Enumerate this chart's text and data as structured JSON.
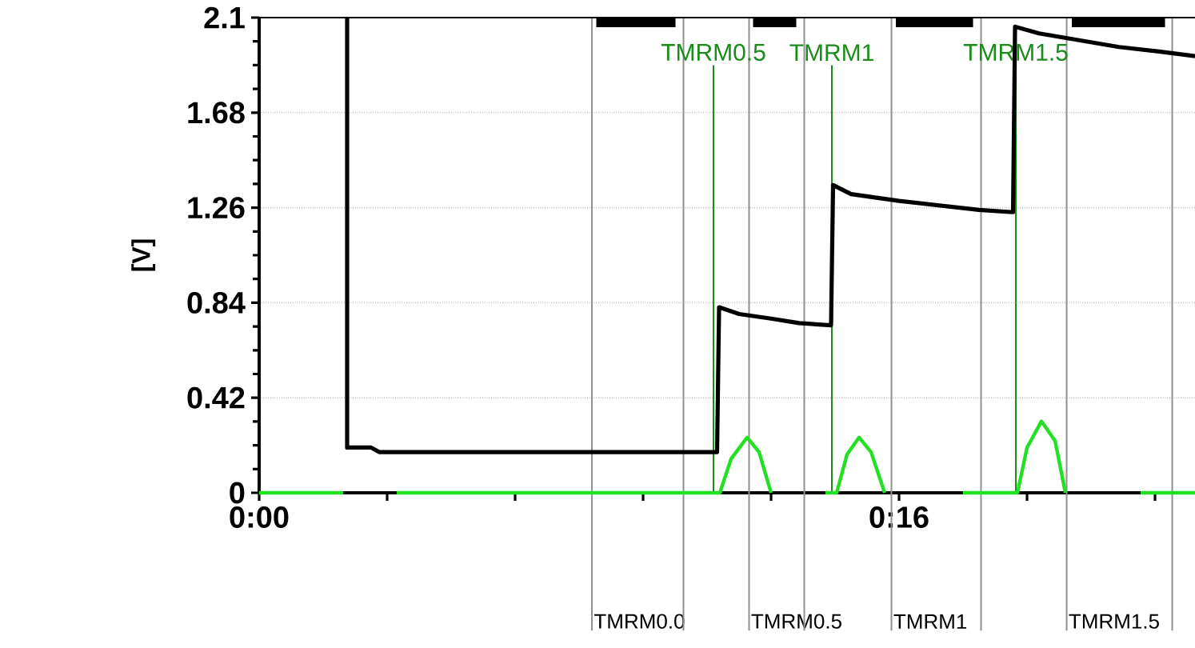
{
  "chart_data": {
    "type": "line",
    "ylabel": "[V]",
    "xlim": [
      0,
      23.4
    ],
    "ylim": [
      0,
      2.1
    ],
    "xticks": [
      {
        "value": 0,
        "label": "0:00"
      },
      {
        "value": 3.2,
        "label": null
      },
      {
        "value": 6.4,
        "label": null
      },
      {
        "value": 9.6,
        "label": null
      },
      {
        "value": 12.8,
        "label": null
      },
      {
        "value": 16,
        "label": "0:16"
      },
      {
        "value": 19.2,
        "label": null
      },
      {
        "value": 22.4,
        "label": null
      }
    ],
    "yticks": [
      0,
      0.42,
      0.84,
      1.26,
      1.68,
      2.1
    ],
    "grid": "y",
    "series": [
      {
        "color": "#000000",
        "x": [
          2.2,
          2.2,
          2.8,
          3.0,
          11.45,
          11.5,
          12.0,
          12.8,
          13.5,
          14.3,
          14.35,
          14.8,
          16,
          17,
          18,
          18.85,
          18.9,
          19.5,
          20.5,
          21.5,
          22.5,
          23.4
        ],
        "values": [
          2.1,
          0.2,
          0.2,
          0.18,
          0.18,
          0.82,
          0.79,
          0.77,
          0.75,
          0.74,
          1.36,
          1.32,
          1.29,
          1.27,
          1.25,
          1.24,
          2.06,
          2.03,
          2.0,
          1.97,
          1.95,
          1.93
        ]
      },
      {
        "color": "#000000",
        "x": [
          8.43,
          10.41,
          11.0,
          12.35,
          13.43,
          14.5,
          15.92,
          17.85,
          19.0,
          20.32,
          22.65
        ],
        "values": [
          2.08,
          2.08,
          null,
          2.08,
          2.08,
          null,
          2.08,
          2.08,
          null,
          2.08,
          2.08
        ]
      },
      {
        "color": "#22e022",
        "x": [
          0,
          2.1,
          2.5,
          3.44,
          11.52,
          11.8,
          12.2,
          12.5,
          12.8,
          13.5,
          14.16,
          14.44,
          14.7,
          15.0,
          15.3,
          15.64,
          16.5,
          17.6,
          18.96,
          19.2,
          19.56,
          19.9,
          20.16,
          21,
          22.04,
          23.4
        ],
        "values": [
          0,
          0,
          null,
          0,
          0,
          0.15,
          0.245,
          0.18,
          0,
          null,
          0,
          0,
          0.17,
          0.245,
          0.18,
          0,
          null,
          0,
          0,
          0.2,
          0.316,
          0.23,
          0,
          null,
          0,
          0
        ]
      }
    ],
    "ref_lines": [
      {
        "axis": "x",
        "value": 8.32,
        "label": "TMRM0.0",
        "color": "#909090"
      },
      {
        "axis": "x",
        "value": 10.61,
        "color": "#909090"
      },
      {
        "axis": "x",
        "value": 12.25,
        "label": "TMRM0.5",
        "color": "#909090"
      },
      {
        "axis": "x",
        "value": 13.63,
        "color": "#909090"
      },
      {
        "axis": "x",
        "value": 15.81,
        "label": "TMRM1",
        "color": "#909090"
      },
      {
        "axis": "x",
        "value": 18.05,
        "color": "#909090"
      },
      {
        "axis": "x",
        "value": 20.19,
        "label": "TMRM1.5",
        "color": "#909090"
      },
      {
        "axis": "x",
        "value": 22.83,
        "color": "#909090"
      },
      {
        "axis": "x",
        "value": 11.36,
        "label": "TMRM0.5",
        "color": "#1a8c1a"
      },
      {
        "axis": "x",
        "value": 14.32,
        "label": "TMRM1",
        "color": "#1a8c1a"
      },
      {
        "axis": "x",
        "value": 18.92,
        "label": "TMRM1.5",
        "color": "#1a8c1a"
      }
    ]
  }
}
